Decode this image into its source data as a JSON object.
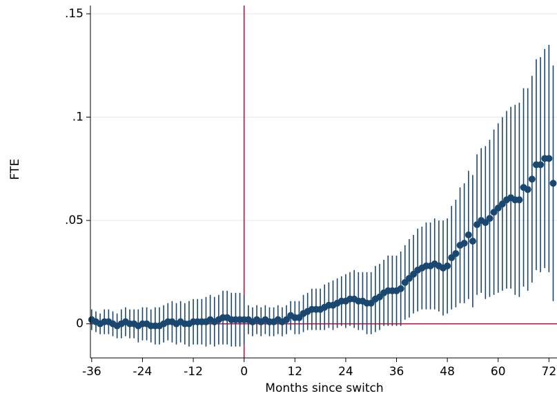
{
  "chart_data": {
    "type": "errorbar-scatter",
    "x_label": "Months since switch",
    "y_label": "FTE",
    "x": [
      -36,
      -35,
      -34,
      -33,
      -32,
      -31,
      -30,
      -29,
      -28,
      -27,
      -26,
      -25,
      -24,
      -23,
      -22,
      -21,
      -20,
      -19,
      -18,
      -17,
      -16,
      -15,
      -14,
      -13,
      -12,
      -11,
      -10,
      -9,
      -8,
      -7,
      -6,
      -5,
      -4,
      -3,
      -2,
      -1,
      0,
      1,
      2,
      3,
      4,
      5,
      6,
      7,
      8,
      9,
      10,
      11,
      12,
      13,
      14,
      15,
      16,
      17,
      18,
      19,
      20,
      21,
      22,
      23,
      24,
      25,
      26,
      27,
      28,
      29,
      30,
      31,
      32,
      33,
      34,
      35,
      36,
      37,
      38,
      39,
      40,
      41,
      42,
      43,
      44,
      45,
      46,
      47,
      48,
      49,
      50,
      51,
      52,
      53,
      54,
      55,
      56,
      57,
      58,
      59,
      60,
      61,
      62,
      63,
      64,
      65,
      66,
      67,
      68,
      69,
      70,
      71,
      72,
      73
    ],
    "series": [
      {
        "color": "#1a476f",
        "values": [
          0.002,
          0.001,
          0,
          0.001,
          0.001,
          0,
          -0.001,
          0,
          0.001,
          0,
          0,
          -0.001,
          0,
          0,
          -0.001,
          -0.001,
          -0.001,
          0,
          0.001,
          0.001,
          0,
          0.001,
          0,
          0,
          0.001,
          0.001,
          0.001,
          0.001,
          0.002,
          0.001,
          0.002,
          0.003,
          0.003,
          0.002,
          0.002,
          0.002,
          0.002,
          0.002,
          0.001,
          0.002,
          0.001,
          0.002,
          0.001,
          0.001,
          0.002,
          0.001,
          0.002,
          0.004,
          0.003,
          0.003,
          0.005,
          0.006,
          0.007,
          0.007,
          0.007,
          0.008,
          0.009,
          0.009,
          0.01,
          0.011,
          0.011,
          0.012,
          0.012,
          0.011,
          0.011,
          0.01,
          0.01,
          0.012,
          0.013,
          0.015,
          0.016,
          0.016,
          0.016,
          0.017,
          0.02,
          0.022,
          0.024,
          0.026,
          0.027,
          0.028,
          0.028,
          0.029,
          0.028,
          0.027,
          0.028,
          0.032,
          0.034,
          0.038,
          0.039,
          0.043,
          0.04,
          0.048,
          0.05,
          0.049,
          0.051,
          0.054,
          0.056,
          0.058,
          0.06,
          0.061,
          0.06,
          0.06,
          0.066,
          0.065,
          0.07,
          0.077,
          0.077,
          0.08,
          0.08,
          0.068
        ],
        "errors": [
          0.005,
          0.005,
          0.005,
          0.006,
          0.006,
          0.006,
          0.006,
          0.007,
          0.007,
          0.007,
          0.007,
          0.008,
          0.008,
          0.008,
          0.008,
          0.009,
          0.009,
          0.009,
          0.009,
          0.01,
          0.01,
          0.01,
          0.01,
          0.011,
          0.011,
          0.011,
          0.011,
          0.012,
          0.012,
          0.012,
          0.012,
          0.013,
          0.013,
          0.013,
          0.013,
          0.013,
          0.012,
          0.007,
          0.007,
          0.007,
          0.007,
          0.007,
          0.007,
          0.007,
          0.007,
          0.007,
          0.007,
          0.007,
          0.008,
          0.008,
          0.009,
          0.009,
          0.01,
          0.01,
          0.01,
          0.011,
          0.011,
          0.012,
          0.012,
          0.012,
          0.013,
          0.013,
          0.014,
          0.014,
          0.014,
          0.015,
          0.015,
          0.016,
          0.016,
          0.016,
          0.017,
          0.017,
          0.017,
          0.018,
          0.018,
          0.019,
          0.019,
          0.02,
          0.02,
          0.021,
          0.021,
          0.022,
          0.022,
          0.023,
          0.023,
          0.025,
          0.026,
          0.028,
          0.029,
          0.031,
          0.032,
          0.034,
          0.035,
          0.037,
          0.038,
          0.04,
          0.041,
          0.042,
          0.043,
          0.044,
          0.046,
          0.047,
          0.048,
          0.049,
          0.05,
          0.051,
          0.052,
          0.053,
          0.055,
          0.057
        ]
      }
    ],
    "xlim": [
      -36.3,
      73.9
    ],
    "xticks": [
      -36,
      -24,
      -12,
      0,
      12,
      24,
      36,
      48,
      60,
      72
    ],
    "ylim": [
      -0.0165,
      0.154
    ],
    "yticks": [
      0,
      {
        "value": 0.05,
        "label": ".05"
      },
      {
        "value": 0.1,
        "label": ".1"
      },
      {
        "value": 0.15,
        "label": ".15"
      }
    ],
    "grid": true,
    "x_refline": 0,
    "y_refline": 0,
    "refline_color": "#c10534"
  }
}
